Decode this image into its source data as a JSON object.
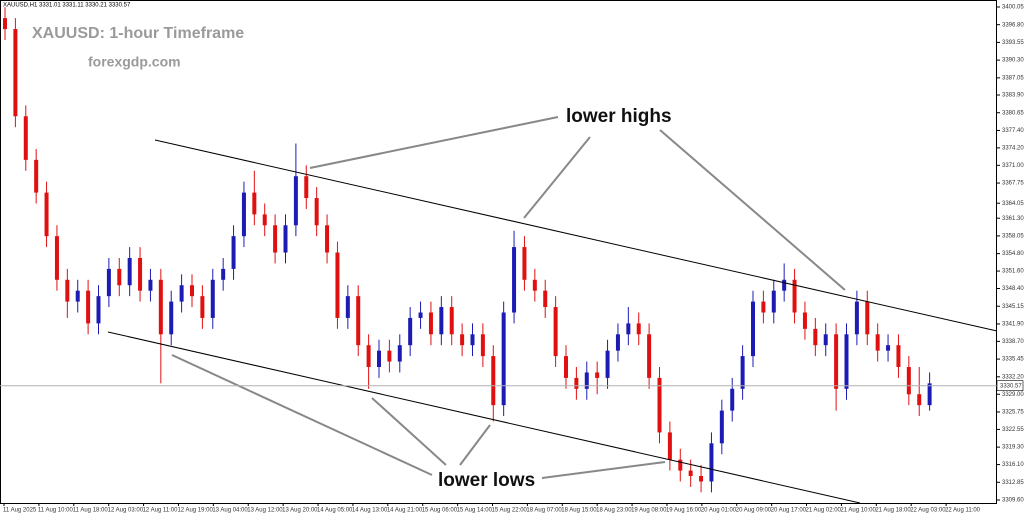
{
  "chart_data": {
    "type": "candlestick",
    "header": "XAUUSD,H1  3331.01 3331.11 3330.21 3330.57",
    "title": "XAUUSD: 1-hour Timeframe",
    "subtitle": "forexgdp.com",
    "annotations": [
      "lower highs",
      "lower lows"
    ],
    "up_color": "#1c1cb4",
    "down_color": "#e01010",
    "current_price": {
      "value": 3330.57,
      "label": "3330.57"
    },
    "ylim": [
      3309.05,
      3401.33
    ],
    "yticks": [
      {
        "value": 3400.05,
        "label": "3400.05"
      },
      {
        "value": 3396.8,
        "label": "3396.80"
      },
      {
        "value": 3393.55,
        "label": "3393.55"
      },
      {
        "value": 3390.3,
        "label": "3390.30"
      },
      {
        "value": 3387.05,
        "label": "3387.05"
      },
      {
        "value": 3383.9,
        "label": "3383.90"
      },
      {
        "value": 3380.65,
        "label": "3380.65"
      },
      {
        "value": 3377.4,
        "label": "3377.40"
      },
      {
        "value": 3374.2,
        "label": "3374.20"
      },
      {
        "value": 3371.0,
        "label": "3371.00"
      },
      {
        "value": 3367.75,
        "label": "3367.75"
      },
      {
        "value": 3364.05,
        "label": "3364.05"
      },
      {
        "value": 3361.3,
        "label": "3361.30"
      },
      {
        "value": 3358.05,
        "label": "3358.05"
      },
      {
        "value": 3354.8,
        "label": "3354.80"
      },
      {
        "value": 3351.6,
        "label": "3351.60"
      },
      {
        "value": 3348.4,
        "label": "3348.40"
      },
      {
        "value": 3345.15,
        "label": "3345.15"
      },
      {
        "value": 3341.9,
        "label": "3341.90"
      },
      {
        "value": 3338.7,
        "label": "3338.70"
      },
      {
        "value": 3335.45,
        "label": "3335.45"
      },
      {
        "value": 3332.2,
        "label": "3332.20"
      },
      {
        "value": 3329.0,
        "label": "3329.00"
      },
      {
        "value": 3325.75,
        "label": "3325.75"
      },
      {
        "value": 3322.55,
        "label": "3322.55"
      },
      {
        "value": 3319.3,
        "label": "3319.30"
      },
      {
        "value": 3316.1,
        "label": "3316.10"
      },
      {
        "value": 3312.85,
        "label": "3312.85"
      },
      {
        "value": 3309.6,
        "label": "3309.60"
      }
    ],
    "xlabels": [
      "11 Aug 2025",
      "11 Aug 10:00",
      "11 Aug 18:00",
      "12 Aug 03:00",
      "12 Aug 11:00",
      "12 Aug 19:00",
      "13 Aug 04:00",
      "13 Aug 12:00",
      "13 Aug 20:00",
      "14 Aug 05:00",
      "14 Aug 13:00",
      "14 Aug 21:00",
      "15 Aug 06:00",
      "15 Aug 14:00",
      "15 Aug 22:00",
      "18 Aug 07:00",
      "18 Aug 15:00",
      "18 Aug 23:00",
      "19 Aug 08:00",
      "19 Aug 16:00",
      "20 Aug 01:00",
      "20 Aug 09:00",
      "20 Aug 17:00",
      "21 Aug 02:00",
      "21 Aug 10:00",
      "21 Aug 18:00",
      "22 Aug 03:00",
      "22 Aug 11:00"
    ],
    "open": [
      3398,
      3396,
      3380,
      3372,
      3366,
      3358,
      3350,
      3346,
      3348,
      3342,
      3347,
      3352,
      3349,
      3354,
      3348,
      3350,
      3340,
      3346,
      3349,
      3347,
      3343,
      3350,
      3352,
      3358,
      3366,
      3362,
      3360,
      3355,
      3360,
      3369,
      3365,
      3360,
      3355,
      3343,
      3347,
      3338,
      3334,
      3337,
      3335,
      3338,
      3343,
      3344,
      3340,
      3345,
      3340,
      3338,
      3340,
      3336,
      3327,
      3344,
      3356,
      3350,
      3348,
      3345,
      3336,
      3332,
      3330,
      3333,
      3332,
      3337,
      3340,
      3342,
      3340,
      3332,
      3322,
      3317,
      3315,
      3314,
      3313,
      3320,
      3326,
      3330,
      3336,
      3346,
      3344,
      3348,
      3350,
      3344,
      3341,
      3338,
      3340,
      3330,
      3340,
      3346,
      3340,
      3337,
      3338,
      3334,
      3329,
      3327
    ],
    "high": [
      3400,
      3398,
      3382,
      3374,
      3368,
      3360,
      3352,
      3350,
      3350,
      3349,
      3354,
      3354,
      3356,
      3356,
      3352,
      3352,
      3348,
      3351,
      3351,
      3349,
      3352,
      3354,
      3360,
      3368,
      3370,
      3364,
      3362,
      3362,
      3375,
      3371,
      3367,
      3362,
      3357,
      3349,
      3349,
      3340,
      3339,
      3339,
      3340,
      3345,
      3346,
      3346,
      3347,
      3347,
      3342,
      3342,
      3342,
      3338,
      3346,
      3359,
      3358,
      3352,
      3350,
      3347,
      3338,
      3334,
      3335,
      3335,
      3339,
      3342,
      3345,
      3344,
      3342,
      3334,
      3324,
      3319,
      3317,
      3316,
      3322,
      3328,
      3332,
      3338,
      3348,
      3348,
      3350,
      3353,
      3352,
      3346,
      3343,
      3342,
      3342,
      3342,
      3348,
      3348,
      3342,
      3340,
      3340,
      3336,
      3334,
      3333
    ],
    "low": [
      3394,
      3378,
      3370,
      3364,
      3356,
      3348,
      3343,
      3344,
      3340,
      3340,
      3345,
      3347,
      3347,
      3346,
      3346,
      3331,
      3338,
      3344,
      3345,
      3341,
      3341,
      3348,
      3350,
      3356,
      3360,
      3358,
      3353,
      3353,
      3358,
      3363,
      3358,
      3353,
      3341,
      3341,
      3336,
      3330,
      3332,
      3333,
      3333,
      3336,
      3341,
      3338,
      3338,
      3338,
      3336,
      3336,
      3334,
      3324,
      3325,
      3342,
      3348,
      3346,
      3343,
      3334,
      3330,
      3328,
      3328,
      3329,
      3330,
      3335,
      3338,
      3338,
      3330,
      3320,
      3315,
      3313,
      3312,
      3311,
      3311,
      3318,
      3324,
      3328,
      3334,
      3342,
      3342,
      3346,
      3342,
      3339,
      3336,
      3336,
      3326,
      3328,
      3338,
      3338,
      3335,
      3335,
      3332,
      3327,
      3325,
      3326
    ],
    "close": [
      3396,
      3380,
      3372,
      3366,
      3358,
      3350,
      3346,
      3348,
      3342,
      3347,
      3352,
      3349,
      3354,
      3348,
      3350,
      3340,
      3346,
      3349,
      3347,
      3343,
      3350,
      3352,
      3358,
      3366,
      3362,
      3360,
      3355,
      3360,
      3369,
      3365,
      3360,
      3355,
      3343,
      3347,
      3338,
      3334,
      3337,
      3335,
      3338,
      3343,
      3344,
      3340,
      3345,
      3340,
      3338,
      3340,
      3336,
      3327,
      3344,
      3356,
      3350,
      3348,
      3345,
      3336,
      3332,
      3330,
      3333,
      3332,
      3337,
      3340,
      3342,
      3340,
      3332,
      3322,
      3317,
      3315,
      3314,
      3313,
      3320,
      3326,
      3330,
      3336,
      3346,
      3344,
      3348,
      3350,
      3344,
      3341,
      3338,
      3340,
      3330,
      3340,
      3346,
      3340,
      3337,
      3338,
      3334,
      3329,
      3327,
      3331
    ]
  }
}
